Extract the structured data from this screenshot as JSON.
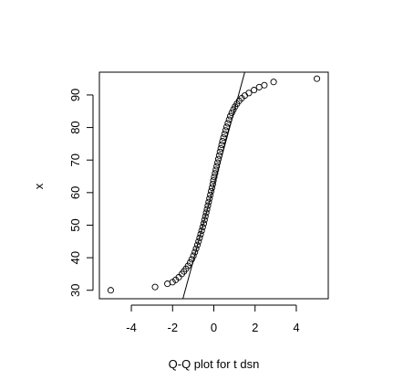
{
  "chart_data": {
    "type": "scatter",
    "title": "",
    "xlabel": "Q-Q plot for t dsn",
    "ylabel": "x",
    "xlim": [
      -5.55,
      5.55
    ],
    "ylim": [
      27.4,
      97.0
    ],
    "x_ticks": [
      -4,
      -2,
      0,
      2,
      4
    ],
    "y_ticks": [
      30,
      40,
      50,
      60,
      70,
      80,
      90
    ],
    "grid": false,
    "legend": "none",
    "point_style": "open-circle",
    "reference_line": {
      "x1": -1.5,
      "y1": 27.4,
      "x2": 1.5,
      "y2": 97.0
    },
    "points": [
      {
        "x": -5.0,
        "y": 30.0
      },
      {
        "x": -2.85,
        "y": 31.0
      },
      {
        "x": -2.25,
        "y": 32.0
      },
      {
        "x": -2.0,
        "y": 32.5
      },
      {
        "x": -1.85,
        "y": 33.2
      },
      {
        "x": -1.7,
        "y": 34.0
      },
      {
        "x": -1.55,
        "y": 35.0
      },
      {
        "x": -1.45,
        "y": 35.8
      },
      {
        "x": -1.35,
        "y": 36.6
      },
      {
        "x": -1.25,
        "y": 37.5
      },
      {
        "x": -1.15,
        "y": 38.5
      },
      {
        "x": -1.07,
        "y": 39.5
      },
      {
        "x": -0.99,
        "y": 40.6
      },
      {
        "x": -0.92,
        "y": 41.7
      },
      {
        "x": -0.86,
        "y": 42.8
      },
      {
        "x": -0.8,
        "y": 43.9
      },
      {
        "x": -0.74,
        "y": 45.0
      },
      {
        "x": -0.69,
        "y": 46.1
      },
      {
        "x": -0.64,
        "y": 47.2
      },
      {
        "x": -0.59,
        "y": 48.3
      },
      {
        "x": -0.54,
        "y": 49.4
      },
      {
        "x": -0.49,
        "y": 50.5
      },
      {
        "x": -0.45,
        "y": 51.6
      },
      {
        "x": -0.41,
        "y": 52.7
      },
      {
        "x": -0.37,
        "y": 53.8
      },
      {
        "x": -0.33,
        "y": 54.9
      },
      {
        "x": -0.29,
        "y": 56.0
      },
      {
        "x": -0.25,
        "y": 57.1
      },
      {
        "x": -0.21,
        "y": 58.2
      },
      {
        "x": -0.17,
        "y": 59.3
      },
      {
        "x": -0.13,
        "y": 60.4
      },
      {
        "x": -0.09,
        "y": 61.5
      },
      {
        "x": -0.05,
        "y": 62.6
      },
      {
        "x": -0.02,
        "y": 63.7
      },
      {
        "x": 0.02,
        "y": 64.8
      },
      {
        "x": 0.06,
        "y": 65.9
      },
      {
        "x": 0.1,
        "y": 67.0
      },
      {
        "x": 0.14,
        "y": 68.1
      },
      {
        "x": 0.18,
        "y": 69.2
      },
      {
        "x": 0.22,
        "y": 70.3
      },
      {
        "x": 0.26,
        "y": 71.4
      },
      {
        "x": 0.3,
        "y": 72.5
      },
      {
        "x": 0.34,
        "y": 73.6
      },
      {
        "x": 0.38,
        "y": 74.7
      },
      {
        "x": 0.42,
        "y": 75.8
      },
      {
        "x": 0.47,
        "y": 76.9
      },
      {
        "x": 0.52,
        "y": 78.0
      },
      {
        "x": 0.57,
        "y": 79.1
      },
      {
        "x": 0.62,
        "y": 80.2
      },
      {
        "x": 0.68,
        "y": 81.3
      },
      {
        "x": 0.74,
        "y": 82.4
      },
      {
        "x": 0.8,
        "y": 83.5
      },
      {
        "x": 0.87,
        "y": 84.5
      },
      {
        "x": 0.95,
        "y": 85.5
      },
      {
        "x": 1.03,
        "y": 86.4
      },
      {
        "x": 1.12,
        "y": 87.3
      },
      {
        "x": 1.23,
        "y": 88.2
      },
      {
        "x": 1.35,
        "y": 89.0
      },
      {
        "x": 1.5,
        "y": 89.8
      },
      {
        "x": 1.7,
        "y": 90.6
      },
      {
        "x": 1.95,
        "y": 91.5
      },
      {
        "x": 2.2,
        "y": 92.4
      },
      {
        "x": 2.45,
        "y": 93.0
      },
      {
        "x": 2.9,
        "y": 94.0
      },
      {
        "x": 5.0,
        "y": 95.0
      }
    ]
  }
}
